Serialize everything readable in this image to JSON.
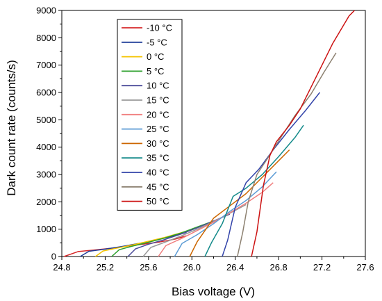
{
  "chart_data": {
    "type": "line",
    "title": "",
    "xlabel": "Bias voltage (V)",
    "ylabel": "Dark count rate (counts/s)",
    "xlim": [
      24.8,
      27.6
    ],
    "ylim": [
      0,
      9000
    ],
    "x_ticks": [
      "24.8",
      "25.2",
      "25.6",
      "26.0",
      "26.4",
      "26.8",
      "27.2",
      "27.6"
    ],
    "y_ticks": [
      "0",
      "1000",
      "2000",
      "3000",
      "4000",
      "5000",
      "6000",
      "7000",
      "8000",
      "9000"
    ],
    "grid": false,
    "legend_position": "top-left",
    "series": [
      {
        "name": "-10 °C",
        "color": "#d62728",
        "x": [
          24.82,
          24.95,
          25.1,
          25.25,
          25.4,
          25.55,
          25.7,
          25.85,
          25.95
        ],
        "y": [
          0,
          180,
          240,
          300,
          380,
          450,
          530,
          640,
          760
        ]
      },
      {
        "name": "-5 °C",
        "color": "#1f3d99",
        "x": [
          24.97,
          25.05,
          25.2,
          25.35,
          25.5,
          25.65,
          25.8,
          25.95
        ],
        "y": [
          0,
          190,
          270,
          360,
          470,
          580,
          720,
          880
        ]
      },
      {
        "name": "0 °C",
        "color": "#f5c400",
        "x": [
          25.11,
          25.18,
          25.3,
          25.45,
          25.6,
          25.75,
          25.9,
          26.05
        ],
        "y": [
          0,
          200,
          300,
          420,
          560,
          700,
          870,
          1050
        ]
      },
      {
        "name": "5 °C",
        "color": "#2ca02c",
        "x": [
          25.26,
          25.33,
          25.45,
          25.6,
          25.75,
          25.9,
          26.05,
          26.2
        ],
        "y": [
          0,
          250,
          380,
          520,
          680,
          860,
          1080,
          1300
        ]
      },
      {
        "name": "10 °C",
        "color": "#4b4b9a",
        "x": [
          25.41,
          25.48,
          25.6,
          25.75,
          25.9,
          26.05,
          26.2,
          26.35
        ],
        "y": [
          0,
          280,
          450,
          620,
          820,
          1050,
          1300,
          1550
        ]
      },
      {
        "name": "15 °C",
        "color": "#999999",
        "x": [
          25.55,
          25.62,
          25.75,
          25.9,
          26.05,
          26.2,
          26.35,
          26.5
        ],
        "y": [
          0,
          330,
          520,
          750,
          1000,
          1280,
          1580,
          1900
        ]
      },
      {
        "name": "20 °C",
        "color": "#f08080",
        "x": [
          25.69,
          25.76,
          25.9,
          26.05,
          26.2,
          26.35,
          26.5,
          26.65,
          26.75
        ],
        "y": [
          0,
          400,
          650,
          950,
          1250,
          1600,
          1950,
          2350,
          2700
        ]
      },
      {
        "name": "25 °C",
        "color": "#5b9bd5",
        "x": [
          25.84,
          25.91,
          26.05,
          26.2,
          26.35,
          26.5,
          26.65,
          26.78
        ],
        "y": [
          0,
          480,
          800,
          1200,
          1650,
          2050,
          2550,
          3100
        ]
      },
      {
        "name": "30 °C",
        "color": "#cc6600",
        "x": [
          25.98,
          26.05,
          26.2,
          26.35,
          26.5,
          26.65,
          26.8,
          26.9
        ],
        "y": [
          0,
          550,
          1400,
          1850,
          2300,
          2900,
          3500,
          3900
        ]
      },
      {
        "name": "35 °C",
        "color": "#138a8a",
        "x": [
          26.12,
          26.18,
          26.28,
          26.38,
          26.5,
          26.65,
          26.8,
          26.95,
          27.03
        ],
        "y": [
          0,
          500,
          1200,
          2200,
          2500,
          3000,
          3650,
          4350,
          4800
        ]
      },
      {
        "name": "40 °C",
        "color": "#3344aa",
        "x": [
          26.28,
          26.33,
          26.4,
          26.5,
          26.62,
          26.75,
          26.9,
          27.05,
          27.18
        ],
        "y": [
          0,
          600,
          1800,
          2700,
          3200,
          3900,
          4650,
          5350,
          6000
        ]
      },
      {
        "name": "45 °C",
        "color": "#8c8070",
        "x": [
          26.42,
          26.47,
          26.52,
          26.6,
          26.7,
          26.82,
          26.95,
          27.1,
          27.22,
          27.33
        ],
        "y": [
          0,
          900,
          2000,
          3000,
          3600,
          4350,
          5150,
          5950,
          6750,
          7450
        ]
      },
      {
        "name": "50 °C",
        "color": "#cc1111",
        "x": [
          26.55,
          26.6,
          26.66,
          26.72,
          26.78,
          26.9,
          27.0,
          27.15,
          27.3,
          27.45,
          27.5
        ],
        "y": [
          0,
          900,
          2600,
          3700,
          4200,
          4800,
          5400,
          6600,
          7800,
          8800,
          9000
        ]
      }
    ]
  }
}
